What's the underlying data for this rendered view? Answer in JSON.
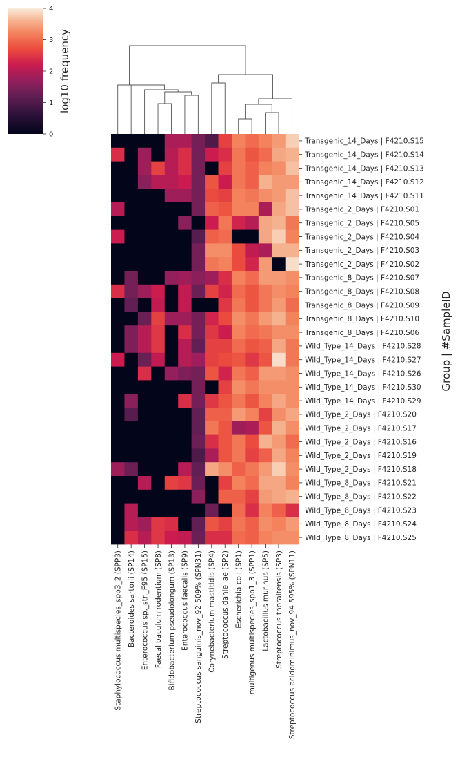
{
  "chart_data": {
    "type": "heatmap",
    "ylabel": "Group | #SampleID",
    "colorbar": {
      "label": "log10 frequency",
      "min": 0,
      "max": 4,
      "ticks": [
        "0",
        "1",
        "2",
        "3",
        "4"
      ]
    },
    "columns": [
      "Staphylococcus multispecies_spp3_2 (SPP3)",
      "Bacteroides sartorii (SP14)",
      "Enterococcus sp._str._F95 (SP15)",
      "Faecalibaculum rodentium (SP8)",
      "Bifidobacterium pseudolongum (SP13)",
      "Enterococcus faecalis (SP9)",
      "Streptococcus sanguinis_nov_92.509% (SPN31)",
      "Corynebacterium mastitidis (SP4)",
      "Streptococcus danieliae (SP2)",
      "Escherichia coli (SP1)",
      "multigenus multispecies_spp1_3 (SPP1)",
      "Lactobacillus murinus (SP5)",
      "Streptococcus thoraltensis (SP3)",
      "Streptococcus acidominimus_nov_94.595% (SPN11)"
    ],
    "rows": [
      "Transgenic_14_Days | F4210.S15",
      "Transgenic_14_Days | F4210.S14",
      "Transgenic_14_Days | F4210.S13",
      "Transgenic_14_Days | F4210.S12",
      "Transgenic_14_Days | F4210.S11",
      "Transgenic_2_Days | F4210.S01",
      "Transgenic_2_Days | F4210.S05",
      "Transgenic_2_Days | F4210.S04",
      "Transgenic_2_Days | F4210.S03",
      "Transgenic_2_Days | F4210.S02",
      "Transgenic_8_Days | F4210.S07",
      "Transgenic_8_Days | F4210.S08",
      "Transgenic_8_Days | F4210.S09",
      "Transgenic_8_Days | F4210.S10",
      "Transgenic_8_Days | F4210.S06",
      "Wild_Type_14_Days | F4210.S28",
      "Wild_Type_14_Days | F4210.S27",
      "Wild_Type_14_Days | F4210.S26",
      "Wild_Type_14_Days | F4210.S30",
      "Wild_Type_14_Days | F4210.S29",
      "Wild_Type_2_Days | F4210.S20",
      "Wild_Type_2_Days | F4210.S17",
      "Wild_Type_2_Days | F4210.S16",
      "Wild_Type_2_Days | F4210.S19",
      "Wild_Type_2_Days | F4210.S18",
      "Wild_Type_8_Days | F4210.S21",
      "Wild_Type_8_Days | F4210.S22",
      "Wild_Type_8_Days | F4210.S23",
      "Wild_Type_8_Days | F4210.S24",
      "Wild_Type_8_Days | F4210.S25"
    ],
    "values": [
      [
        0,
        0,
        0,
        0,
        1.9,
        1.9,
        1.4,
        1.0,
        2.6,
        3.2,
        3.0,
        3.2,
        3.4,
        3.8
      ],
      [
        2.4,
        0,
        1.8,
        0,
        2.0,
        2.4,
        1.4,
        2.2,
        2.4,
        3.1,
        2.8,
        3.0,
        3.5,
        3.6
      ],
      [
        0,
        0,
        1.8,
        2.6,
        2.0,
        2.4,
        1.4,
        0,
        2.6,
        3.1,
        2.9,
        3.2,
        3.3,
        3.7
      ],
      [
        0,
        0,
        1.6,
        2.0,
        2.0,
        2.2,
        1.4,
        2.8,
        2.2,
        3.1,
        2.9,
        3.6,
        3.4,
        3.4
      ],
      [
        0,
        0,
        0,
        0,
        1.8,
        1.8,
        1.4,
        2.7,
        2.6,
        3.2,
        3.1,
        3.3,
        3.4,
        3.7
      ],
      [
        2.0,
        0,
        0,
        0,
        0,
        0,
        1.4,
        2.9,
        2.8,
        3.2,
        3.2,
        1.9,
        3.5,
        3.7
      ],
      [
        0,
        0,
        0,
        0,
        0,
        1.6,
        0,
        2.2,
        3.1,
        2.3,
        2.0,
        3.5,
        3.6,
        3.1
      ],
      [
        2.2,
        0,
        0,
        0,
        0,
        0,
        1.1,
        2.9,
        3.0,
        0,
        0,
        3.5,
        3.8,
        3.2
      ],
      [
        0,
        0,
        0,
        0,
        0,
        0,
        1.4,
        3.3,
        3.3,
        2.7,
        2.1,
        1.9,
        3.6,
        3.6
      ],
      [
        0,
        0,
        0,
        0,
        0,
        0,
        1.4,
        3.1,
        3.2,
        2.7,
        2.3,
        3.4,
        0,
        3.9
      ],
      [
        0,
        1.4,
        0,
        0,
        1.7,
        1.8,
        1.6,
        1.8,
        2.4,
        3.2,
        3.0,
        3.4,
        3.4,
        3.3
      ],
      [
        2.4,
        1.4,
        1.8,
        2.2,
        0,
        2.1,
        1.3,
        2.6,
        2.3,
        3.0,
        2.8,
        3.1,
        3.3,
        3.2
      ],
      [
        0,
        1.2,
        0,
        2.1,
        0,
        2.1,
        0,
        0,
        2.5,
        3.1,
        2.8,
        3.1,
        3.4,
        3.0
      ],
      [
        0,
        0,
        1.3,
        2.6,
        1.8,
        1.8,
        1.4,
        2.3,
        2.7,
        3.3,
        3.1,
        3.4,
        3.6,
        3.2
      ],
      [
        0,
        1.5,
        2.0,
        2.5,
        0,
        2.4,
        1.4,
        2.5,
        2.2,
        3.2,
        3.0,
        3.1,
        3.3,
        3.3
      ],
      [
        0,
        1.5,
        2.0,
        2.5,
        0,
        2.0,
        1.2,
        2.6,
        2.6,
        3.0,
        2.8,
        2.9,
        3.5,
        3.1
      ],
      [
        2.2,
        0,
        1.3,
        2.1,
        0,
        2.0,
        1.8,
        2.6,
        2.7,
        2.8,
        2.5,
        2.8,
        3.9,
        3.1
      ],
      [
        0,
        0,
        2.4,
        0,
        1.7,
        1.5,
        1.4,
        2.8,
        2.3,
        3.1,
        2.9,
        3.4,
        3.4,
        3.3
      ],
      [
        0,
        0,
        0,
        0,
        0,
        0,
        1.4,
        0,
        2.6,
        3.3,
        3.1,
        3.3,
        3.3,
        3.3
      ],
      [
        0,
        1.6,
        0,
        0,
        0,
        2.4,
        1.4,
        2.5,
        2.8,
        3.1,
        2.8,
        3.2,
        3.5,
        3.3
      ],
      [
        0,
        1.1,
        0,
        0,
        0,
        0,
        1.2,
        2.9,
        2.9,
        3.4,
        3.2,
        2.6,
        3.3,
        3.5
      ],
      [
        0,
        0,
        0,
        0,
        0,
        0,
        1.2,
        3.1,
        2.8,
        1.8,
        1.9,
        2.8,
        3.6,
        3.3
      ],
      [
        0,
        0,
        0,
        0,
        0,
        0,
        1.3,
        2.4,
        2.8,
        3.1,
        2.7,
        3.6,
        3.4,
        3.0
      ],
      [
        0,
        0,
        0,
        0,
        0,
        0,
        1.0,
        1.9,
        2.8,
        3.1,
        2.6,
        2.9,
        3.5,
        3.2
      ],
      [
        1.8,
        1.3,
        0,
        0,
        0,
        2.0,
        1.2,
        3.5,
        3.3,
        2.9,
        3.1,
        3.4,
        3.8,
        3.3
      ],
      [
        0,
        0,
        2.0,
        0,
        2.6,
        2.5,
        1.3,
        0,
        2.6,
        3.2,
        3.0,
        3.5,
        3.5,
        3.2
      ],
      [
        0,
        0,
        0,
        0,
        0,
        0,
        1.6,
        0,
        2.9,
        2.9,
        2.6,
        3.4,
        3.5,
        3.6
      ],
      [
        0,
        2.0,
        0,
        0,
        0,
        0,
        0,
        1.3,
        0,
        3.0,
        2.4,
        3.2,
        2.9,
        2.4
      ],
      [
        0,
        2.0,
        1.8,
        2.5,
        2.4,
        0,
        1.2,
        2.8,
        2.6,
        3.1,
        2.9,
        3.3,
        3.2,
        3.4
      ],
      [
        0,
        2.4,
        2.0,
        2.5,
        2.2,
        2.1,
        1.3,
        2.4,
        2.4,
        3.0,
        2.9,
        3.2,
        3.3,
        3.3
      ]
    ]
  }
}
